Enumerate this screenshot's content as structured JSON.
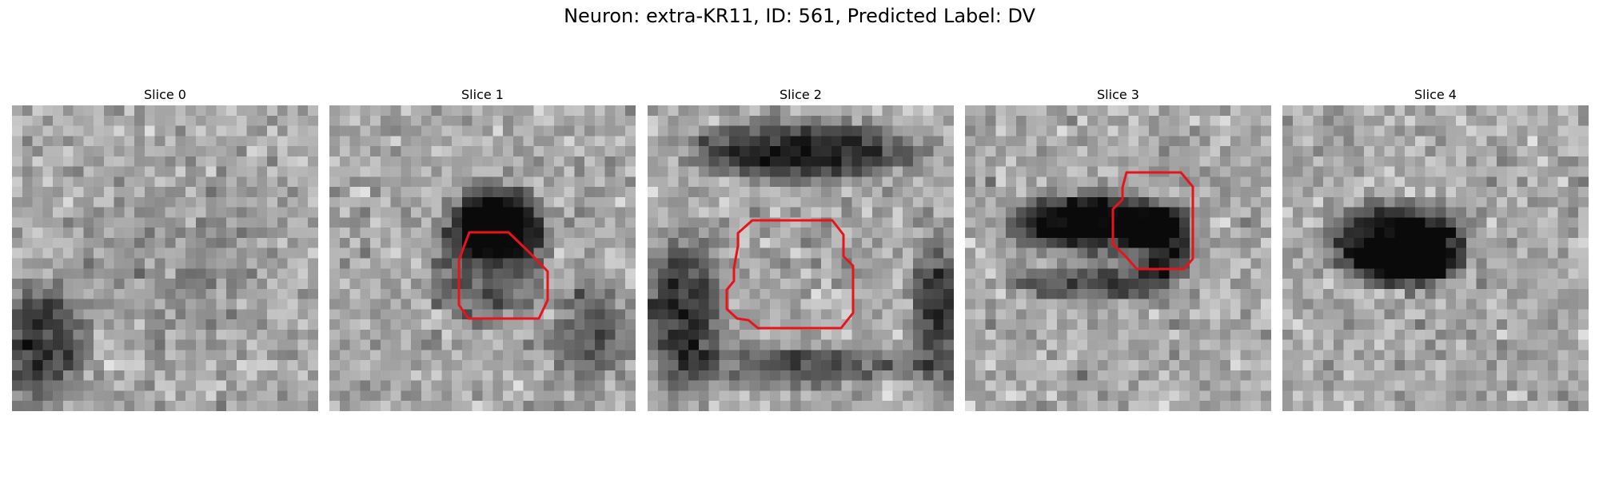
{
  "figure": {
    "title": "Neuron: extra-KR11, ID: 561, Predicted Label: DV"
  },
  "slices": [
    {
      "title": "Slice 0",
      "has_roi": false
    },
    {
      "title": "Slice 1",
      "has_roi": true
    },
    {
      "title": "Slice 2",
      "has_roi": true
    },
    {
      "title": "Slice 3",
      "has_roi": true
    },
    {
      "title": "Slice 4",
      "has_roi": false
    }
  ],
  "colors": {
    "roi_outline": "#e8141c",
    "background": "#ffffff"
  },
  "colormap": "grayscale"
}
